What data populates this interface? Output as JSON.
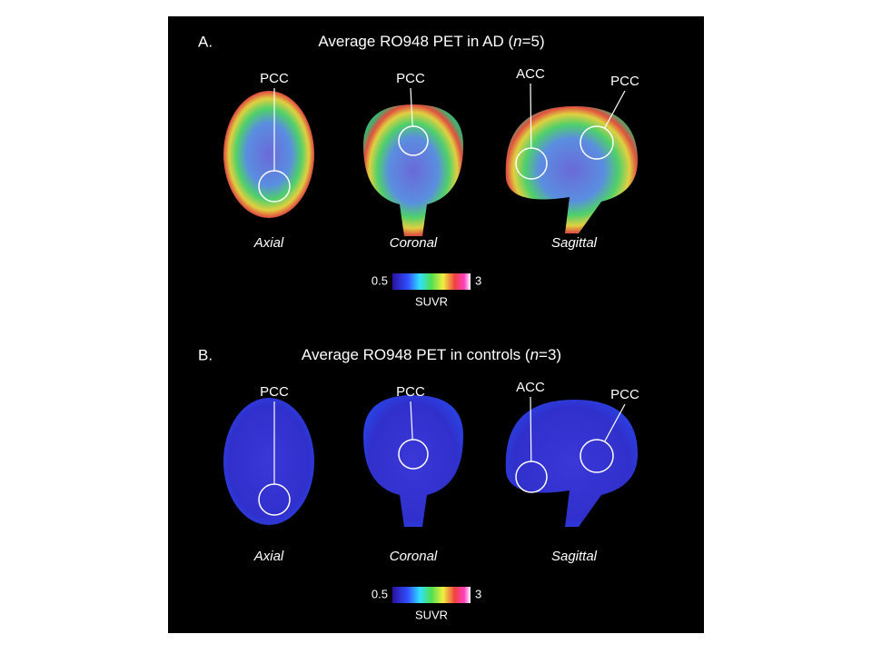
{
  "panels": [
    {
      "label": "A.",
      "title_prefix": "Average RO948 PET in AD (",
      "title_italic": "n",
      "title_suffix": "=5)",
      "views": [
        {
          "name": "Axial",
          "regions": [
            "PCC"
          ]
        },
        {
          "name": "Coronal",
          "regions": [
            "PCC"
          ]
        },
        {
          "name": "Sagittal",
          "regions": [
            "ACC",
            "PCC"
          ]
        }
      ],
      "colorbar": {
        "min": "0.5",
        "max": "3",
        "unit": "SUVR"
      }
    },
    {
      "label": "B.",
      "title_prefix": "Average RO948 PET in controls (",
      "title_italic": "n",
      "title_suffix": "=3)",
      "views": [
        {
          "name": "Axial",
          "regions": [
            "PCC"
          ]
        },
        {
          "name": "Coronal",
          "regions": [
            "PCC"
          ]
        },
        {
          "name": "Sagittal",
          "regions": [
            "ACC",
            "PCC"
          ]
        }
      ],
      "colorbar": {
        "min": "0.5",
        "max": "3",
        "unit": "SUVR"
      }
    }
  ]
}
